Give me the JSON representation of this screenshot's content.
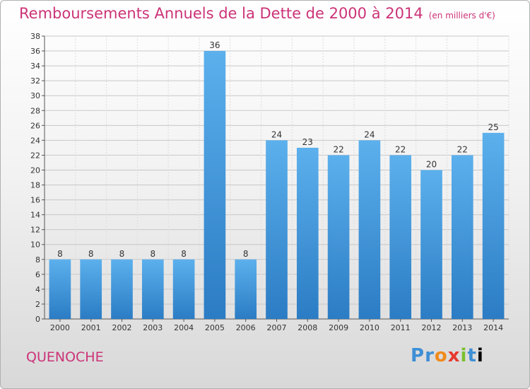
{
  "header": {
    "title": "Remboursements Annuels de la Dette de 2000 à 2014",
    "subtitle": "(en milliers d'€)"
  },
  "footer": {
    "commune": "QUENOCHE",
    "logo": "Proxiti",
    "logo_letters": [
      "P",
      "r",
      "o",
      "x",
      "i",
      "t",
      "i"
    ]
  },
  "colors": {
    "bar": "#2b7fc7",
    "bar_light": "#5cb0ec",
    "title": "#cc3377",
    "grid": "#c8c8c8"
  },
  "chart_data": {
    "type": "bar",
    "title": "Remboursements Annuels de la Dette de 2000 à 2014",
    "subtitle": "(en milliers d'€)",
    "categories": [
      "2000",
      "2001",
      "2002",
      "2003",
      "2004",
      "2005",
      "2006",
      "2007",
      "2008",
      "2009",
      "2010",
      "2011",
      "2012",
      "2013",
      "2014"
    ],
    "values": [
      8,
      8,
      8,
      8,
      8,
      36,
      8,
      24,
      23,
      22,
      24,
      22,
      20,
      22,
      25
    ],
    "ylim": [
      0,
      38
    ],
    "yticks": [
      0,
      2,
      4,
      6,
      8,
      10,
      12,
      14,
      16,
      18,
      20,
      22,
      24,
      26,
      28,
      30,
      32,
      34,
      36,
      38
    ],
    "grid": true,
    "data_labels": true
  }
}
